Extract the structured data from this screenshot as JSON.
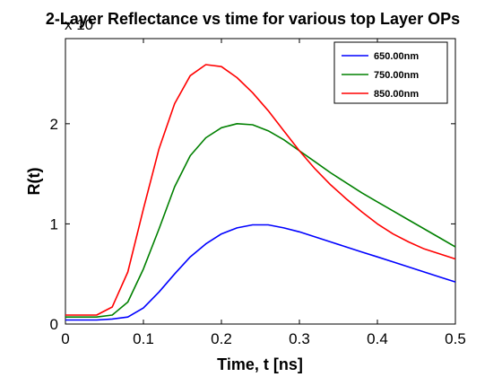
{
  "chart_data": {
    "type": "line",
    "title": "2-Layer Reflectance vs time for various top Layer OPs",
    "xlabel": "Time, t [ns]",
    "ylabel": "R(t)",
    "y_multiplier_label": "x 10",
    "xlim": [
      0,
      0.5
    ],
    "ylim": [
      0,
      2.85
    ],
    "x_ticks": [
      0,
      0.1,
      0.2,
      0.3,
      0.4,
      0.5
    ],
    "x_tick_labels": [
      "0",
      "0.1",
      "0.2",
      "0.3",
      "0.4",
      "0.5"
    ],
    "y_ticks": [
      0,
      1,
      2
    ],
    "y_tick_labels": [
      "0",
      "1",
      "2"
    ],
    "legend_position": "top-right",
    "grid": false,
    "x": [
      0,
      0.02,
      0.04,
      0.06,
      0.08,
      0.1,
      0.12,
      0.14,
      0.16,
      0.18,
      0.2,
      0.22,
      0.24,
      0.26,
      0.28,
      0.3,
      0.32,
      0.34,
      0.36,
      0.38,
      0.4,
      0.42,
      0.44,
      0.46,
      0.48,
      0.5
    ],
    "series": [
      {
        "name": "650.00nm",
        "color": "#0000ff",
        "values": [
          0.04,
          0.04,
          0.04,
          0.05,
          0.07,
          0.16,
          0.32,
          0.5,
          0.67,
          0.8,
          0.9,
          0.96,
          0.99,
          0.99,
          0.96,
          0.92,
          0.87,
          0.82,
          0.77,
          0.72,
          0.67,
          0.62,
          0.57,
          0.52,
          0.47,
          0.42
        ]
      },
      {
        "name": "750.00nm",
        "color": "#008000",
        "values": [
          0.07,
          0.07,
          0.07,
          0.09,
          0.22,
          0.55,
          0.95,
          1.37,
          1.68,
          1.86,
          1.96,
          2.0,
          1.99,
          1.93,
          1.84,
          1.73,
          1.62,
          1.51,
          1.41,
          1.31,
          1.22,
          1.13,
          1.04,
          0.95,
          0.86,
          0.77
        ]
      },
      {
        "name": "850.00nm",
        "color": "#ff0000",
        "values": [
          0.09,
          0.09,
          0.09,
          0.17,
          0.52,
          1.15,
          1.75,
          2.2,
          2.48,
          2.59,
          2.57,
          2.46,
          2.31,
          2.13,
          1.93,
          1.73,
          1.55,
          1.39,
          1.25,
          1.12,
          1.0,
          0.9,
          0.82,
          0.75,
          0.7,
          0.65
        ]
      }
    ]
  }
}
